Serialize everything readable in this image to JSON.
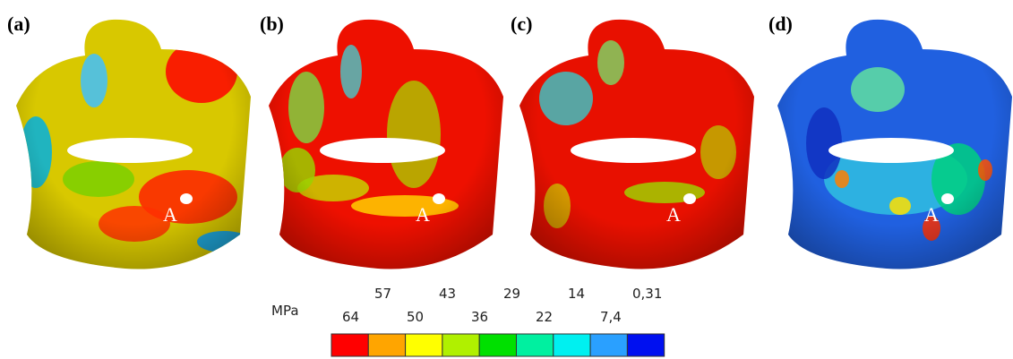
{
  "panels": [
    {
      "label": "(a)",
      "point": "A"
    },
    {
      "label": "(b)",
      "point": "A"
    },
    {
      "label": "(c)",
      "point": "A"
    },
    {
      "label": "(d)",
      "point": "A"
    }
  ],
  "legend": {
    "unit": "MPa",
    "labels": [
      "64",
      "57",
      "50",
      "43",
      "36",
      "29",
      "22",
      "14",
      "7,4",
      "0,31"
    ],
    "colors": [
      "#ff0000",
      "#ffa500",
      "#ffff00",
      "#b0f000",
      "#00e000",
      "#00f0a0",
      "#00f0f0",
      "#2aa0ff",
      "#0010f0"
    ]
  }
}
